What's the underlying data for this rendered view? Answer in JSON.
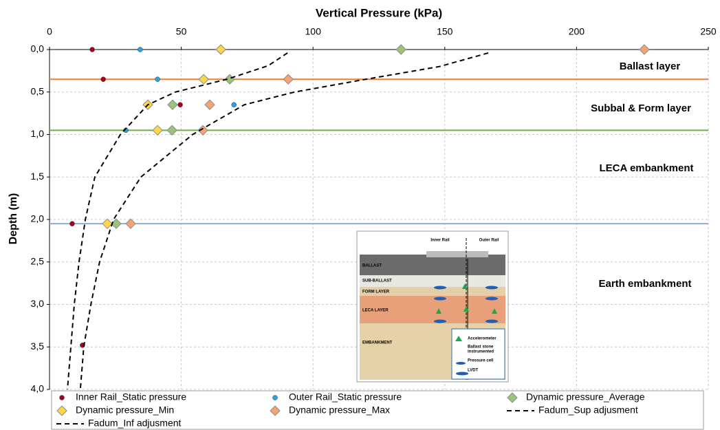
{
  "chart_data": {
    "type": "scatter",
    "x_label": "Vertical Pressure (kPa)",
    "y_label": "Depth (m)",
    "xlim": [
      0,
      250
    ],
    "xticks": [
      0,
      50,
      100,
      150,
      200,
      250
    ],
    "ylim": [
      0,
      4
    ],
    "y_inverted": true,
    "x_axis_position": "top",
    "yticks": [
      {
        "value": 0,
        "label": "0,0"
      },
      {
        "value": 0.5,
        "label": "0,5"
      },
      {
        "value": 1,
        "label": "1,0"
      },
      {
        "value": 1.5,
        "label": "1,5"
      },
      {
        "value": 2,
        "label": "2,0"
      },
      {
        "value": 2.5,
        "label": "2,5"
      },
      {
        "value": 3,
        "label": "3,0"
      },
      {
        "value": 3.5,
        "label": "3,5"
      },
      {
        "value": 4,
        "label": "4,0"
      }
    ],
    "grid": true,
    "legend": "bottom",
    "series": [
      {
        "name": "Inner Rail_Static pressure",
        "color": "#a50021",
        "marker": "circle",
        "x": [
          16.2,
          20.4,
          49.6,
          8.6,
          12.5
        ],
        "y": [
          0,
          0.35,
          0.65,
          2.05,
          3.48
        ]
      },
      {
        "name": "Outer Rail_Static pressure",
        "color": "#29a3dd",
        "marker": "circle",
        "x": [
          34.4,
          41,
          70,
          29
        ],
        "y": [
          0,
          0.35,
          0.65,
          0.95
        ]
      },
      {
        "name": "Dynamic pressure_Average",
        "color": "#9bc47a",
        "marker": "diamond",
        "x": [
          133.4,
          68.4,
          46.7,
          46.5,
          25.3
        ],
        "y": [
          0,
          0.35,
          0.65,
          0.95,
          2.05
        ]
      },
      {
        "name": "Dynamic pressure_Min",
        "color": "#ffd54a",
        "marker": "diamond",
        "x": [
          65,
          58.5,
          37.3,
          41,
          21.9
        ],
        "y": [
          0,
          0.35,
          0.65,
          0.95,
          2.05
        ]
      },
      {
        "name": "Dynamic pressure_Max",
        "color": "#f4a474",
        "marker": "diamond",
        "x": [
          225.7,
          90.6,
          60.8,
          58.2,
          30.8
        ],
        "y": [
          0,
          0.35,
          0.65,
          0.95,
          2.05
        ]
      },
      {
        "name": "Fadum_Sup adjusment",
        "color": "#000000",
        "marker": "dashed-line",
        "x": [
          166.5,
          148,
          120,
          93,
          73.9,
          54.3,
          34.7,
          24.3,
          19,
          15.7,
          13,
          11.7
        ],
        "y": [
          0.04,
          0.2,
          0.35,
          0.5,
          0.65,
          1,
          1.5,
          2,
          2.5,
          3,
          3.5,
          4
        ]
      },
      {
        "name": "Fadum_Inf adjusment",
        "color": "#000000",
        "marker": "dashed-line",
        "x": [
          90.3,
          83,
          67.3,
          47.8,
          37.3,
          26.9,
          17.2,
          13.6,
          11.2,
          9.4,
          8.1,
          6.8
        ],
        "y": [
          0.04,
          0.19,
          0.35,
          0.5,
          0.65,
          1,
          1.5,
          2,
          2.5,
          3,
          3.5,
          4
        ]
      }
    ],
    "reference_lines": [
      {
        "y": 0.35,
        "color": "#ed7d31"
      },
      {
        "y": 0.95,
        "color": "#70ad47"
      },
      {
        "y": 2.05,
        "color": "#8faadc"
      }
    ],
    "annotations": [
      "Ballast layer",
      "Subbal & Form layer",
      "LECA embankment",
      "Earth embankment"
    ]
  },
  "inset": {
    "rails": [
      "Inner Rail",
      "Outer Rail"
    ],
    "layers": [
      "BALLAST",
      "SUB-BALLAST",
      "FORM LAYER",
      "LECA LAYER",
      "EMBANKMENT"
    ],
    "legend": [
      "Accelerometer",
      "Ballast stone",
      "instrumented",
      "Pressure cell",
      "LVDT"
    ]
  }
}
